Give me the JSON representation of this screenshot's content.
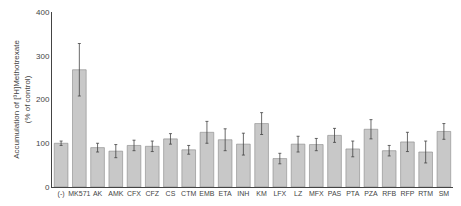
{
  "chart_data": {
    "type": "bar",
    "y_label": "Accumulation of [³H]Methotrexate\n(% of control)",
    "categories": [
      "(-)",
      "MK571",
      "AK",
      "AMK",
      "CFX",
      "CFZ",
      "CS",
      "CTM",
      "EMB",
      "ETA",
      "INH",
      "KM",
      "LFX",
      "LZ",
      "MFX",
      "PAS",
      "PTA",
      "PZA",
      "RFB",
      "RFP",
      "RTM",
      "SM"
    ],
    "values": [
      100,
      268,
      90,
      82,
      95,
      93,
      110,
      85,
      125,
      108,
      98,
      145,
      65,
      98,
      97,
      118,
      87,
      132,
      83,
      103,
      80,
      127
    ],
    "errors": [
      5,
      60,
      10,
      15,
      12,
      12,
      12,
      10,
      25,
      25,
      25,
      25,
      12,
      18,
      14,
      16,
      18,
      22,
      12,
      22,
      25,
      18
    ],
    "color": "#c8c8c8",
    "ylim": [
      0,
      400
    ],
    "yticks": [
      0,
      100,
      200,
      300,
      400
    ],
    "grid": false
  }
}
